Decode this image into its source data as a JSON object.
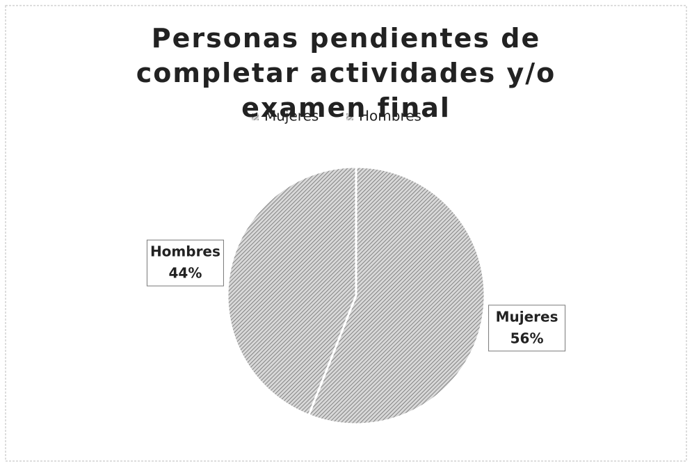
{
  "chart_data": {
    "type": "pie",
    "title": "Personas pendientes de completar actividades y/o examen final",
    "categories": [
      "Mujeres",
      "Hombres"
    ],
    "values": [
      56,
      44
    ],
    "value_labels": [
      "56%",
      "44%"
    ],
    "colors": [
      "#6e6e6e",
      "#6e6e6e"
    ],
    "legend": "top"
  }
}
